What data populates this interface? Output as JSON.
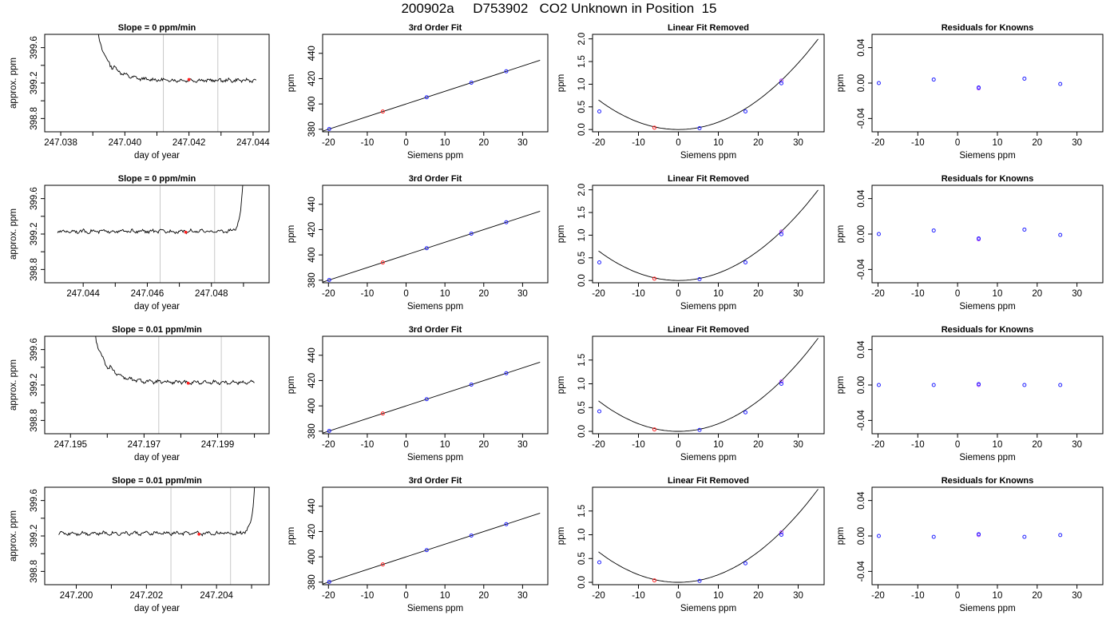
{
  "page": {
    "title": "200902a     D753902   CO2 Unknown in Position  15"
  },
  "chart_data": [
    {
      "type": "line",
      "row": 1,
      "col": 1,
      "title": "Slope =  0  ppm/min",
      "xlabel": "day of year",
      "ylabel": "approx. ppm",
      "xlim": [
        247.0375,
        247.0445
      ],
      "xticks": [
        247.038,
        247.04,
        247.042,
        247.044
      ],
      "xticklabels": [
        "247.038",
        "247.040",
        "247.042",
        "247.044"
      ],
      "xticks_minor": [
        247.039,
        247.041,
        247.043
      ],
      "ylim": [
        398.65,
        399.75
      ],
      "yticks": [
        398.8,
        399.0,
        399.2,
        399.4,
        399.6
      ],
      "yticklabels": [
        "398.8",
        "",
        "399.2",
        "",
        "399.6"
      ],
      "vlines": [
        247.0412,
        247.0429
      ],
      "highlight_points": [
        {
          "x": 247.042,
          "y": 399.24
        }
      ],
      "trace": {
        "start": 247.0385,
        "end": 247.0441,
        "baseline": 399.23,
        "peak_x": 247.039,
        "shape": "decay_from_top"
      }
    },
    {
      "type": "scatter",
      "row": 1,
      "col": 2,
      "title": "3rd Order Fit",
      "xlabel": "Siemens ppm",
      "ylabel": "ppm",
      "xlim": [
        -21.5,
        36.5
      ],
      "xticks": [
        -20,
        -10,
        0,
        10,
        20,
        30
      ],
      "xticklabels": [
        "-20",
        "-10",
        "0",
        "10",
        "20",
        "30"
      ],
      "ylim": [
        378,
        455
      ],
      "yticks": [
        380,
        400,
        420,
        440
      ],
      "yticklabels": [
        "380",
        "400",
        "420",
        "440"
      ],
      "points_blue": [
        {
          "x": -19.8,
          "y": 380.2
        },
        {
          "x": 5.3,
          "y": 405.3
        },
        {
          "x": 16.8,
          "y": 416.8
        },
        {
          "x": 25.8,
          "y": 425.8
        }
      ],
      "points_red": [
        {
          "x": -6.0,
          "y": 394.0
        }
      ],
      "fit_line": {
        "x": [
          -21.5,
          34.5
        ],
        "y": [
          378.5,
          434.5
        ]
      }
    },
    {
      "type": "scatter",
      "row": 1,
      "col": 3,
      "title": "Linear Fit Removed",
      "xlabel": "Siemens ppm",
      "ylabel": "ppm",
      "xlim": [
        -21.5,
        36.5
      ],
      "xticks": [
        -20,
        -10,
        0,
        10,
        20,
        30
      ],
      "xticklabels": [
        "-20",
        "-10",
        "0",
        "10",
        "20",
        "30"
      ],
      "ylim": [
        -0.05,
        2.1
      ],
      "yticks": [
        0.0,
        0.5,
        1.0,
        1.5,
        2.0
      ],
      "yticklabels": [
        "0.0",
        "0.5",
        "1.0",
        "1.5",
        "2.0"
      ],
      "points_blue": [
        {
          "x": -19.8,
          "y": 0.4
        },
        {
          "x": 5.3,
          "y": 0.03
        },
        {
          "x": 16.8,
          "y": 0.4
        },
        {
          "x": 25.8,
          "y": 1.02
        }
      ],
      "points_violet": [
        {
          "x": 25.8,
          "y": 1.08
        }
      ],
      "points_red": [
        {
          "x": -6.0,
          "y": 0.04
        }
      ],
      "curve": {
        "a": 0.00163,
        "x_end": 35
      }
    },
    {
      "type": "scatter",
      "row": 1,
      "col": 4,
      "title": "Residuals for Knowns",
      "xlabel": "Siemens ppm",
      "ylabel": "ppm",
      "xlim": [
        -21.5,
        36.5
      ],
      "xticks": [
        -20,
        -10,
        0,
        10,
        20,
        30
      ],
      "xticklabels": [
        "-20",
        "-10",
        "0",
        "10",
        "20",
        "30"
      ],
      "ylim": [
        -0.055,
        0.055
      ],
      "yticks": [
        -0.04,
        0.0,
        0.04
      ],
      "yticklabels": [
        "-0.04",
        "0.00",
        "0.04"
      ],
      "points_blue": [
        {
          "x": -19.8,
          "y": 0.0
        },
        {
          "x": -6.0,
          "y": 0.004
        },
        {
          "x": 5.3,
          "y": -0.005
        },
        {
          "x": 16.8,
          "y": 0.005
        },
        {
          "x": 25.8,
          "y": -0.001
        }
      ],
      "points_violet": [
        {
          "x": 5.3,
          "y": -0.006
        }
      ]
    },
    {
      "type": "line",
      "row": 2,
      "col": 1,
      "title": "Slope =  0  ppm/min",
      "xlabel": "day of year",
      "ylabel": "approx. ppm",
      "xlim": [
        247.0428,
        247.0498
      ],
      "xticks": [
        247.044,
        247.046,
        247.048
      ],
      "xticklabels": [
        "247.044",
        "247.046",
        "247.048"
      ],
      "xticks_minor": [
        247.045,
        247.047,
        247.049
      ],
      "ylim": [
        398.65,
        399.75
      ],
      "yticks": [
        398.8,
        399.0,
        399.2,
        399.4,
        399.6
      ],
      "yticklabels": [
        "398.8",
        "",
        "399.2",
        "",
        "399.6"
      ],
      "vlines": [
        247.0464,
        247.0481
      ],
      "highlight_points": [
        {
          "x": 247.0472,
          "y": 399.22
        }
      ],
      "trace": {
        "start": 247.0432,
        "end": 247.0491,
        "baseline": 399.23,
        "peak_x": 247.049,
        "shape": "rise_at_end"
      }
    },
    {
      "type": "scatter",
      "row": 2,
      "col": 2,
      "title": "3rd Order Fit",
      "xlabel": "Siemens ppm",
      "ylabel": "ppm",
      "xlim": [
        -21.5,
        36.5
      ],
      "xticks": [
        -20,
        -10,
        0,
        10,
        20,
        30
      ],
      "xticklabels": [
        "-20",
        "-10",
        "0",
        "10",
        "20",
        "30"
      ],
      "ylim": [
        378,
        455
      ],
      "yticks": [
        380,
        400,
        420,
        440
      ],
      "yticklabels": [
        "380",
        "400",
        "420",
        "440"
      ],
      "points_blue": [
        {
          "x": -19.8,
          "y": 380.2
        },
        {
          "x": 5.3,
          "y": 405.3
        },
        {
          "x": 16.8,
          "y": 416.8
        },
        {
          "x": 25.8,
          "y": 425.8
        }
      ],
      "points_red": [
        {
          "x": -6.0,
          "y": 394.0
        }
      ],
      "fit_line": {
        "x": [
          -21.5,
          34.5
        ],
        "y": [
          378.5,
          434.5
        ]
      }
    },
    {
      "type": "scatter",
      "row": 2,
      "col": 3,
      "title": "Linear Fit Removed",
      "xlabel": "Siemens ppm",
      "ylabel": "ppm",
      "xlim": [
        -21.5,
        36.5
      ],
      "xticks": [
        -20,
        -10,
        0,
        10,
        20,
        30
      ],
      "xticklabels": [
        "-20",
        "-10",
        "0",
        "10",
        "20",
        "30"
      ],
      "ylim": [
        -0.05,
        2.1
      ],
      "yticks": [
        0.0,
        0.5,
        1.0,
        1.5,
        2.0
      ],
      "yticklabels": [
        "0.0",
        "0.5",
        "1.0",
        "1.5",
        "2.0"
      ],
      "points_blue": [
        {
          "x": -19.8,
          "y": 0.4
        },
        {
          "x": 5.3,
          "y": 0.03
        },
        {
          "x": 16.8,
          "y": 0.4
        },
        {
          "x": 25.8,
          "y": 1.02
        }
      ],
      "points_violet": [
        {
          "x": 25.8,
          "y": 1.08
        }
      ],
      "points_red": [
        {
          "x": -6.0,
          "y": 0.04
        }
      ],
      "curve": {
        "a": 0.00163,
        "x_end": 35
      }
    },
    {
      "type": "scatter",
      "row": 2,
      "col": 4,
      "title": "Residuals for Knowns",
      "xlabel": "Siemens ppm",
      "ylabel": "ppm",
      "xlim": [
        -21.5,
        36.5
      ],
      "xticks": [
        -20,
        -10,
        0,
        10,
        20,
        30
      ],
      "xticklabels": [
        "-20",
        "-10",
        "0",
        "10",
        "20",
        "30"
      ],
      "ylim": [
        -0.055,
        0.055
      ],
      "yticks": [
        -0.04,
        0.0,
        0.04
      ],
      "yticklabels": [
        "-0.04",
        "0.00",
        "0.04"
      ],
      "points_blue": [
        {
          "x": -19.8,
          "y": 0.0
        },
        {
          "x": -6.0,
          "y": 0.004
        },
        {
          "x": 5.3,
          "y": -0.005
        },
        {
          "x": 16.8,
          "y": 0.005
        },
        {
          "x": 25.8,
          "y": -0.001
        }
      ],
      "points_violet": [
        {
          "x": 5.3,
          "y": -0.006
        }
      ]
    },
    {
      "type": "line",
      "row": 3,
      "col": 1,
      "title": "Slope =  0.01  ppm/min",
      "xlabel": "day of year",
      "ylabel": "approx. ppm",
      "xlim": [
        247.1943,
        247.2004
      ],
      "xticks": [
        247.195,
        247.197,
        247.199
      ],
      "xticklabels": [
        "247.195",
        "247.197",
        "247.199"
      ],
      "xticks_minor": [
        247.196,
        247.198,
        247.2
      ],
      "ylim": [
        398.65,
        399.75
      ],
      "yticks": [
        398.8,
        399.0,
        399.2,
        399.4,
        399.6
      ],
      "yticklabels": [
        "398.8",
        "",
        "399.2",
        "",
        "399.6"
      ],
      "vlines": [
        247.1974,
        247.1991
      ],
      "highlight_points": [
        {
          "x": 247.1982,
          "y": 399.22
        }
      ],
      "trace": {
        "start": 247.1951,
        "end": 247.2,
        "baseline": 399.23,
        "peak_x": 247.1953,
        "shape": "decay_from_top"
      }
    },
    {
      "type": "scatter",
      "row": 3,
      "col": 2,
      "title": "3rd Order Fit",
      "xlabel": "Siemens ppm",
      "ylabel": "ppm",
      "xlim": [
        -21.5,
        36.5
      ],
      "xticks": [
        -20,
        -10,
        0,
        10,
        20,
        30
      ],
      "xticklabels": [
        "-20",
        "-10",
        "0",
        "10",
        "20",
        "30"
      ],
      "ylim": [
        378,
        455
      ],
      "yticks": [
        380,
        400,
        420,
        440
      ],
      "yticklabels": [
        "380",
        "400",
        "420",
        "440"
      ],
      "points_blue": [
        {
          "x": -19.8,
          "y": 380.2
        },
        {
          "x": 5.3,
          "y": 405.3
        },
        {
          "x": 16.8,
          "y": 416.8
        },
        {
          "x": 25.8,
          "y": 425.8
        }
      ],
      "points_red": [
        {
          "x": -6.0,
          "y": 394.0
        }
      ],
      "fit_line": {
        "x": [
          -21.5,
          34.5
        ],
        "y": [
          378.5,
          434.5
        ]
      }
    },
    {
      "type": "scatter",
      "row": 3,
      "col": 3,
      "title": "Linear Fit Removed",
      "xlabel": "Siemens ppm",
      "ylabel": "ppm",
      "xlim": [
        -21.5,
        36.5
      ],
      "xticks": [
        -20,
        -10,
        0,
        10,
        20,
        30
      ],
      "xticklabels": [
        "-20",
        "-10",
        "0",
        "10",
        "20",
        "30"
      ],
      "ylim": [
        -0.05,
        2.0
      ],
      "yticks": [
        0.0,
        0.5,
        1.0,
        1.5
      ],
      "yticklabels": [
        "0.0",
        "0.5",
        "1.0",
        "1.5"
      ],
      "points_blue": [
        {
          "x": -19.8,
          "y": 0.42
        },
        {
          "x": 5.3,
          "y": 0.03
        },
        {
          "x": 16.8,
          "y": 0.4
        },
        {
          "x": 25.8,
          "y": 1.0
        }
      ],
      "points_violet": [
        {
          "x": 25.8,
          "y": 1.05
        }
      ],
      "points_red": [
        {
          "x": -6.0,
          "y": 0.04
        }
      ],
      "curve": {
        "a": 0.0016,
        "x_end": 35
      }
    },
    {
      "type": "scatter",
      "row": 3,
      "col": 4,
      "title": "Residuals for Knowns",
      "xlabel": "Siemens ppm",
      "ylabel": "ppm",
      "xlim": [
        -21.5,
        36.5
      ],
      "xticks": [
        -20,
        -10,
        0,
        10,
        20,
        30
      ],
      "xticklabels": [
        "-20",
        "-10",
        "0",
        "10",
        "20",
        "30"
      ],
      "ylim": [
        -0.055,
        0.055
      ],
      "yticks": [
        -0.04,
        0.0,
        0.04
      ],
      "yticklabels": [
        "-0.04",
        "0.00",
        "0.04"
      ],
      "points_blue": [
        {
          "x": -19.8,
          "y": 0.0
        },
        {
          "x": -6.0,
          "y": 0.0
        },
        {
          "x": 5.3,
          "y": 0.001
        },
        {
          "x": 16.8,
          "y": 0.0
        },
        {
          "x": 25.8,
          "y": 0.0
        }
      ],
      "points_violet": [
        {
          "x": 5.3,
          "y": 0.0
        }
      ]
    },
    {
      "type": "line",
      "row": 4,
      "col": 1,
      "title": "Slope =  0.01  ppm/min",
      "xlabel": "day of year",
      "ylabel": "approx. ppm",
      "xlim": [
        247.1991,
        247.2055
      ],
      "xticks": [
        247.2,
        247.202,
        247.204
      ],
      "xticklabels": [
        "247.200",
        "247.202",
        "247.204"
      ],
      "xticks_minor": [
        247.201,
        247.203,
        247.205
      ],
      "ylim": [
        398.65,
        399.75
      ],
      "yticks": [
        398.8,
        399.0,
        399.2,
        399.4,
        399.6
      ],
      "yticklabels": [
        "398.8",
        "",
        "399.2",
        "",
        "399.6"
      ],
      "vlines": [
        247.2027,
        247.2044
      ],
      "highlight_points": [
        {
          "x": 247.2035,
          "y": 399.22
        }
      ],
      "trace": {
        "start": 247.1995,
        "end": 247.2052,
        "baseline": 399.23,
        "peak_x": 247.2052,
        "shape": "rise_at_end"
      }
    },
    {
      "type": "scatter",
      "row": 4,
      "col": 2,
      "title": "3rd Order Fit",
      "xlabel": "Siemens ppm",
      "ylabel": "ppm",
      "xlim": [
        -21.5,
        36.5
      ],
      "xticks": [
        -20,
        -10,
        0,
        10,
        20,
        30
      ],
      "xticklabels": [
        "-20",
        "-10",
        "0",
        "10",
        "20",
        "30"
      ],
      "ylim": [
        378,
        455
      ],
      "yticks": [
        380,
        400,
        420,
        440
      ],
      "yticklabels": [
        "380",
        "400",
        "420",
        "440"
      ],
      "points_blue": [
        {
          "x": -19.8,
          "y": 380.2
        },
        {
          "x": 5.3,
          "y": 405.3
        },
        {
          "x": 16.8,
          "y": 416.8
        },
        {
          "x": 25.8,
          "y": 425.8
        }
      ],
      "points_red": [
        {
          "x": -6.0,
          "y": 394.0
        }
      ],
      "fit_line": {
        "x": [
          -21.5,
          34.5
        ],
        "y": [
          378.5,
          434.5
        ]
      }
    },
    {
      "type": "scatter",
      "row": 4,
      "col": 3,
      "title": "Linear Fit Removed",
      "xlabel": "Siemens ppm",
      "ylabel": "ppm",
      "xlim": [
        -21.5,
        36.5
      ],
      "xticks": [
        -20,
        -10,
        0,
        10,
        20,
        30
      ],
      "xticklabels": [
        "-20",
        "-10",
        "0",
        "10",
        "20",
        "30"
      ],
      "ylim": [
        -0.05,
        2.0
      ],
      "yticks": [
        0.0,
        0.5,
        1.0,
        1.5
      ],
      "yticklabels": [
        "0.0",
        "0.5",
        "1.0",
        "1.5"
      ],
      "points_blue": [
        {
          "x": -19.8,
          "y": 0.42
        },
        {
          "x": 5.3,
          "y": 0.03
        },
        {
          "x": 16.8,
          "y": 0.4
        },
        {
          "x": 25.8,
          "y": 1.0
        }
      ],
      "points_violet": [
        {
          "x": 25.8,
          "y": 1.05
        }
      ],
      "points_red": [
        {
          "x": -6.0,
          "y": 0.04
        }
      ],
      "curve": {
        "a": 0.0016,
        "x_end": 35
      }
    },
    {
      "type": "scatter",
      "row": 4,
      "col": 4,
      "title": "Residuals for Knowns",
      "xlabel": "Siemens ppm",
      "ylabel": "ppm",
      "xlim": [
        -21.5,
        36.5
      ],
      "xticks": [
        -20,
        -10,
        0,
        10,
        20,
        30
      ],
      "xticklabels": [
        "-20",
        "-10",
        "0",
        "10",
        "20",
        "30"
      ],
      "ylim": [
        -0.055,
        0.055
      ],
      "yticks": [
        -0.04,
        0.0,
        0.04
      ],
      "yticklabels": [
        "-0.04",
        "0.00",
        "0.04"
      ],
      "points_blue": [
        {
          "x": -19.8,
          "y": 0.0
        },
        {
          "x": -6.0,
          "y": -0.001
        },
        {
          "x": 5.3,
          "y": 0.002
        },
        {
          "x": 16.8,
          "y": -0.001
        },
        {
          "x": 25.8,
          "y": 0.001
        }
      ],
      "points_violet": [
        {
          "x": 5.3,
          "y": 0.001
        }
      ]
    }
  ],
  "colors": {
    "blue_point": "#1f1fff",
    "violet_point": "#b040ff",
    "red_point": "#ff2020",
    "line": "#000000",
    "vline": "#c8c8c8"
  }
}
